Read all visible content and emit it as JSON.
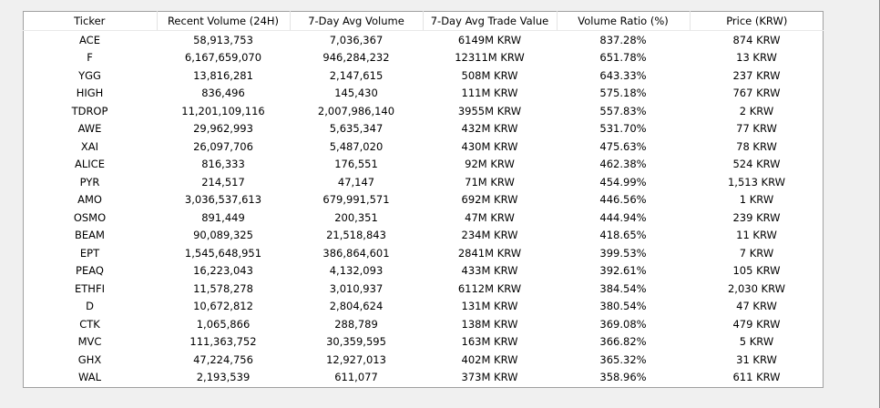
{
  "table": {
    "columns": [
      "Ticker",
      "Recent Volume (24H)",
      "7-Day Avg Volume",
      "7-Day Avg Trade Value",
      "Volume Ratio (%)",
      "Price (KRW)"
    ],
    "rows": [
      [
        "ACE",
        "58,913,753",
        "7,036,367",
        "6149M KRW",
        "837.28%",
        "874 KRW"
      ],
      [
        "F",
        "6,167,659,070",
        "946,284,232",
        "12311M KRW",
        "651.78%",
        "13 KRW"
      ],
      [
        "YGG",
        "13,816,281",
        "2,147,615",
        "508M KRW",
        "643.33%",
        "237 KRW"
      ],
      [
        "HIGH",
        "836,496",
        "145,430",
        "111M KRW",
        "575.18%",
        "767 KRW"
      ],
      [
        "TDROP",
        "11,201,109,116",
        "2,007,986,140",
        "3955M KRW",
        "557.83%",
        "2 KRW"
      ],
      [
        "AWE",
        "29,962,993",
        "5,635,347",
        "432M KRW",
        "531.70%",
        "77 KRW"
      ],
      [
        "XAI",
        "26,097,706",
        "5,487,020",
        "430M KRW",
        "475.63%",
        "78 KRW"
      ],
      [
        "ALICE",
        "816,333",
        "176,551",
        "92M KRW",
        "462.38%",
        "524 KRW"
      ],
      [
        "PYR",
        "214,517",
        "47,147",
        "71M KRW",
        "454.99%",
        "1,513 KRW"
      ],
      [
        "AMO",
        "3,036,537,613",
        "679,991,571",
        "692M KRW",
        "446.56%",
        "1 KRW"
      ],
      [
        "OSMO",
        "891,449",
        "200,351",
        "47M KRW",
        "444.94%",
        "239 KRW"
      ],
      [
        "BEAM",
        "90,089,325",
        "21,518,843",
        "234M KRW",
        "418.65%",
        "11 KRW"
      ],
      [
        "EPT",
        "1,545,648,951",
        "386,864,601",
        "2841M KRW",
        "399.53%",
        "7 KRW"
      ],
      [
        "PEAQ",
        "16,223,043",
        "4,132,093",
        "433M KRW",
        "392.61%",
        "105 KRW"
      ],
      [
        "ETHFI",
        "11,578,278",
        "3,010,937",
        "6112M KRW",
        "384.54%",
        "2,030 KRW"
      ],
      [
        "D",
        "10,672,812",
        "2,804,624",
        "131M KRW",
        "380.54%",
        "47 KRW"
      ],
      [
        "CTK",
        "1,065,866",
        "288,789",
        "138M KRW",
        "369.08%",
        "479 KRW"
      ],
      [
        "MVC",
        "111,363,752",
        "30,359,595",
        "163M KRW",
        "366.82%",
        "5 KRW"
      ],
      [
        "GHX",
        "47,224,756",
        "12,927,013",
        "402M KRW",
        "365.32%",
        "31 KRW"
      ],
      [
        "WAL",
        "2,193,539",
        "611,077",
        "373M KRW",
        "358.96%",
        "611 KRW"
      ]
    ]
  }
}
